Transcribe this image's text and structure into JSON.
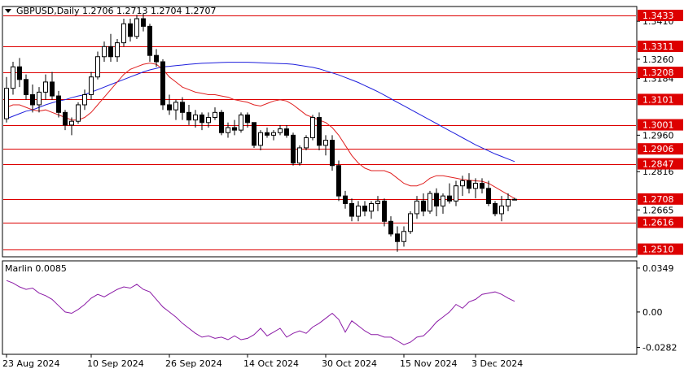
{
  "header": {
    "symbol_text": "GBPUSD,Daily",
    "ohlc_text": "1.2706 1.2713 1.2704 1.2707"
  },
  "indicator": {
    "label_text": "Marlin 0.0085"
  },
  "colors": {
    "level_line": "#dd0000",
    "level_box": "#dd0000",
    "ma_slow": "#1e1edc",
    "ma_fast": "#e02020",
    "marlin": "#8b1aa6",
    "candle": "#000000",
    "bull_fill": "#ffffff",
    "bear_fill": "#000000"
  },
  "chart_data": [
    {
      "type": "candlestick",
      "ylim": [
        1.2483,
        1.3465
      ],
      "price_ticks": [
        1.341,
        1.326,
        1.3184,
        1.296,
        1.2816,
        1.2665
      ],
      "levels": [
        1.3433,
        1.3311,
        1.3208,
        1.3101,
        1.3001,
        1.2906,
        1.2847,
        1.2708,
        1.2616,
        1.251
      ],
      "x_labels": [
        "23 Aug 2024",
        "10 Sep 2024",
        "26 Sep 2024",
        "14 Oct 2024",
        "30 Oct 2024",
        "15 Nov 2024",
        "3 Dec 2024"
      ],
      "x_label_index": [
        0,
        13,
        25,
        37,
        49,
        61,
        72
      ],
      "candles": [
        [
          1.3025,
          1.319,
          1.301,
          1.3145
        ],
        [
          1.3145,
          1.325,
          1.312,
          1.323
        ],
        [
          1.323,
          1.3265,
          1.315,
          1.318
        ],
        [
          1.318,
          1.32,
          1.31,
          1.312
        ],
        [
          1.312,
          1.316,
          1.305,
          1.308
        ],
        [
          1.308,
          1.315,
          1.305,
          1.313
        ],
        [
          1.313,
          1.32,
          1.31,
          1.317
        ],
        [
          1.317,
          1.321,
          1.31,
          1.3115
        ],
        [
          1.3115,
          1.3135,
          1.303,
          1.305
        ],
        [
          1.305,
          1.306,
          1.298,
          1.3
        ],
        [
          1.3,
          1.303,
          1.296,
          1.3015
        ],
        [
          1.3015,
          1.309,
          1.3005,
          1.308
        ],
        [
          1.308,
          1.314,
          1.306,
          1.312
        ],
        [
          1.312,
          1.321,
          1.31,
          1.319
        ],
        [
          1.319,
          1.329,
          1.318,
          1.327
        ],
        [
          1.327,
          1.333,
          1.325,
          1.331
        ],
        [
          1.331,
          1.336,
          1.325,
          1.327
        ],
        [
          1.327,
          1.334,
          1.325,
          1.3325
        ],
        [
          1.3325,
          1.342,
          1.331,
          1.34
        ],
        [
          1.34,
          1.342,
          1.333,
          1.335
        ],
        [
          1.335,
          1.3435,
          1.334,
          1.342
        ],
        [
          1.342,
          1.344,
          1.337,
          1.339
        ],
        [
          1.339,
          1.34,
          1.325,
          1.3275
        ],
        [
          1.3275,
          1.33,
          1.323,
          1.325
        ],
        [
          1.325,
          1.326,
          1.306,
          1.308
        ],
        [
          1.308,
          1.312,
          1.304,
          1.306
        ],
        [
          1.306,
          1.31,
          1.302,
          1.309
        ],
        [
          1.309,
          1.311,
          1.302,
          1.305
        ],
        [
          1.305,
          1.308,
          1.3,
          1.302
        ],
        [
          1.302,
          1.306,
          1.299,
          1.304
        ],
        [
          1.304,
          1.305,
          1.298,
          1.301
        ],
        [
          1.301,
          1.305,
          1.299,
          1.303
        ],
        [
          1.303,
          1.307,
          1.302,
          1.305
        ],
        [
          1.305,
          1.306,
          1.296,
          1.297
        ],
        [
          1.297,
          1.301,
          1.295,
          1.299
        ],
        [
          1.299,
          1.302,
          1.296,
          1.298
        ],
        [
          1.298,
          1.305,
          1.297,
          1.304
        ],
        [
          1.304,
          1.305,
          1.299,
          1.301
        ],
        [
          1.301,
          1.301,
          1.291,
          1.292
        ],
        [
          1.292,
          1.298,
          1.29,
          1.297
        ],
        [
          1.297,
          1.299,
          1.295,
          1.296
        ],
        [
          1.296,
          1.298,
          1.294,
          1.297
        ],
        [
          1.297,
          1.3,
          1.296,
          1.2985
        ],
        [
          1.2985,
          1.3,
          1.295,
          1.296
        ],
        [
          1.296,
          1.297,
          1.284,
          1.285
        ],
        [
          1.285,
          1.292,
          1.284,
          1.291
        ],
        [
          1.291,
          1.296,
          1.29,
          1.295
        ],
        [
          1.295,
          1.304,
          1.294,
          1.303
        ],
        [
          1.303,
          1.305,
          1.29,
          1.292
        ],
        [
          1.292,
          1.296,
          1.288,
          1.294
        ],
        [
          1.294,
          1.296,
          1.282,
          1.284
        ],
        [
          1.284,
          1.286,
          1.27,
          1.272
        ],
        [
          1.272,
          1.274,
          1.267,
          1.269
        ],
        [
          1.269,
          1.271,
          1.262,
          1.264
        ],
        [
          1.264,
          1.27,
          1.262,
          1.268
        ],
        [
          1.268,
          1.27,
          1.264,
          1.266
        ],
        [
          1.266,
          1.27,
          1.263,
          1.269
        ],
        [
          1.269,
          1.272,
          1.266,
          1.27
        ],
        [
          1.27,
          1.271,
          1.26,
          1.262
        ],
        [
          1.262,
          1.264,
          1.256,
          1.257
        ],
        [
          1.257,
          1.26,
          1.25,
          1.254
        ],
        [
          1.254,
          1.26,
          1.252,
          1.258
        ],
        [
          1.258,
          1.266,
          1.257,
          1.265
        ],
        [
          1.265,
          1.272,
          1.263,
          1.27
        ],
        [
          1.27,
          1.273,
          1.264,
          1.266
        ],
        [
          1.266,
          1.274,
          1.265,
          1.273
        ],
        [
          1.273,
          1.275,
          1.264,
          1.268
        ],
        [
          1.268,
          1.273,
          1.265,
          1.272
        ],
        [
          1.272,
          1.277,
          1.269,
          1.27
        ],
        [
          1.27,
          1.278,
          1.268,
          1.276
        ],
        [
          1.276,
          1.28,
          1.272,
          1.278
        ],
        [
          1.278,
          1.281,
          1.273,
          1.275
        ],
        [
          1.275,
          1.279,
          1.271,
          1.277
        ],
        [
          1.277,
          1.279,
          1.273,
          1.275
        ],
        [
          1.275,
          1.278,
          1.268,
          1.269
        ],
        [
          1.269,
          1.27,
          1.264,
          1.265
        ],
        [
          1.265,
          1.272,
          1.262,
          1.268
        ],
        [
          1.268,
          1.273,
          1.266,
          1.2706
        ],
        [
          1.2706,
          1.2713,
          1.2704,
          1.2707
        ]
      ],
      "series": [
        {
          "type": "line",
          "values": [
            1.3025,
            1.3035,
            1.3045,
            1.3055,
            1.306,
            1.307,
            1.308,
            1.3088,
            1.3095,
            1.31,
            1.3108,
            1.3115,
            1.312,
            1.313,
            1.314,
            1.315,
            1.316,
            1.317,
            1.318,
            1.319,
            1.32,
            1.321,
            1.3218,
            1.3224,
            1.323,
            1.3232,
            1.3235,
            1.3237,
            1.324,
            1.3242,
            1.3244,
            1.3245,
            1.3246,
            1.3247,
            1.3248,
            1.3248,
            1.3248,
            1.3248,
            1.3247,
            1.3246,
            1.3245,
            1.3244,
            1.3243,
            1.3242,
            1.324,
            1.3236,
            1.3232,
            1.3228,
            1.3222,
            1.3214,
            1.3206,
            1.3198,
            1.3188,
            1.3178,
            1.3168,
            1.3156,
            1.3144,
            1.3132,
            1.3118,
            1.3104,
            1.309,
            1.3076,
            1.3062,
            1.3048,
            1.3034,
            1.302,
            1.3006,
            1.2992,
            1.2978,
            1.2964,
            1.295,
            1.2936,
            1.2922,
            1.291,
            1.2898,
            1.2886,
            1.2876,
            1.2866,
            1.2856
          ]
        },
        {
          "type": "line",
          "values": [
            1.307,
            1.308,
            1.308,
            1.307,
            1.306,
            1.3055,
            1.306,
            1.305,
            1.304,
            1.303,
            1.302,
            1.302,
            1.303,
            1.305,
            1.308,
            1.311,
            1.314,
            1.317,
            1.32,
            1.322,
            1.323,
            1.324,
            1.3245,
            1.324,
            1.322,
            1.319,
            1.317,
            1.315,
            1.314,
            1.313,
            1.3125,
            1.312,
            1.312,
            1.3115,
            1.311,
            1.31,
            1.3095,
            1.309,
            1.308,
            1.3075,
            1.3085,
            1.3095,
            1.31,
            1.3095,
            1.308,
            1.306,
            1.304,
            1.303,
            1.302,
            1.301,
            1.299,
            1.296,
            1.292,
            1.288,
            1.285,
            1.283,
            1.282,
            1.282,
            1.282,
            1.281,
            1.279,
            1.277,
            1.276,
            1.276,
            1.277,
            1.279,
            1.28,
            1.28,
            1.2795,
            1.279,
            1.2785,
            1.2782,
            1.278,
            1.2778,
            1.277,
            1.2755,
            1.274,
            1.2725,
            1.271
          ]
        }
      ]
    },
    {
      "type": "line",
      "ylim": [
        -0.033,
        0.04
      ],
      "y_ticks": [
        0.0349,
        0.0,
        -0.0282
      ],
      "y_tick_labels": [
        "0.0349",
        "0.00",
        "-0.0282"
      ],
      "series": [
        {
          "values": [
            0.025,
            0.023,
            0.02,
            0.018,
            0.019,
            0.015,
            0.013,
            0.01,
            0.005,
            0.0,
            -0.001,
            0.002,
            0.006,
            0.011,
            0.014,
            0.012,
            0.015,
            0.018,
            0.02,
            0.019,
            0.022,
            0.018,
            0.016,
            0.01,
            0.004,
            0.0,
            -0.004,
            -0.009,
            -0.013,
            -0.017,
            -0.02,
            -0.019,
            -0.021,
            -0.02,
            -0.022,
            -0.019,
            -0.022,
            -0.021,
            -0.018,
            -0.013,
            -0.019,
            -0.016,
            -0.013,
            -0.02,
            -0.017,
            -0.015,
            -0.017,
            -0.012,
            -0.009,
            -0.005,
            -0.001,
            -0.006,
            -0.016,
            -0.007,
            -0.011,
            -0.015,
            -0.018,
            -0.018,
            -0.02,
            -0.02,
            -0.023,
            -0.026,
            -0.024,
            -0.02,
            -0.019,
            -0.014,
            -0.008,
            -0.004,
            0.0,
            0.006,
            0.003,
            0.008,
            0.01,
            0.014,
            0.015,
            0.016,
            0.014,
            0.011,
            0.0085
          ]
        }
      ]
    }
  ]
}
